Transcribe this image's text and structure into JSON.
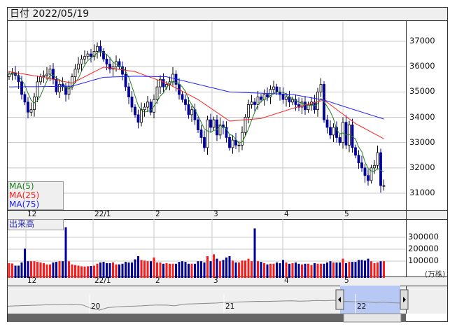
{
  "header": {
    "date_label": "日付",
    "date_value": "2022/05/19"
  },
  "legend": {
    "ma5": "MA(5)",
    "ma25": "MA(25)",
    "ma75": "MA(75)"
  },
  "volume_panel": {
    "label": "出来高",
    "unit": "(万株)"
  },
  "colors": {
    "up_fill": "#ffffff",
    "down_fill": "#000099",
    "ma5": "#208020",
    "ma25": "#ff2020",
    "ma75": "#2020ff",
    "vol_up": "#ff1a1a",
    "vol_down": "#000099",
    "navigator_sel": "#b8c8f5",
    "grid": "#c8c8c8",
    "panel_bg": "#efefef"
  },
  "chart_data": [
    {
      "type": "candlestick",
      "title": "",
      "ylim": [
        30400,
        37800
      ],
      "y_ticks": [
        "37000",
        "36000",
        "35000",
        "34000",
        "33000",
        "32000",
        "31000"
      ],
      "x_ticks": [
        "12",
        "22/1",
        "2",
        "3",
        "4",
        "5"
      ],
      "grid": true,
      "legend_position": "bottom-left",
      "close": [
        35700,
        35750,
        35650,
        35400,
        34900,
        34600,
        34200,
        34300,
        34800,
        35400,
        35600,
        35650,
        35700,
        35900,
        35500,
        35000,
        35300,
        35200,
        34900,
        35200,
        35600,
        35900,
        36100,
        36300,
        36400,
        36500,
        36400,
        36600,
        36800,
        36600,
        36300,
        36100,
        35900,
        36000,
        36200,
        36000,
        35700,
        35200,
        34800,
        34400,
        34100,
        33800,
        34300,
        34400,
        34600,
        34200,
        34700,
        35200,
        35500,
        35200,
        35300,
        35400,
        35700,
        35300,
        34900,
        34700,
        34500,
        34100,
        34300,
        33900,
        33500,
        33200,
        32800,
        33900,
        33600,
        33900,
        33300,
        33700,
        33600,
        33200,
        32800,
        33100,
        32900,
        32900,
        33400,
        34000,
        34500,
        34600,
        34500,
        34800,
        34700,
        34900,
        34800,
        35100,
        35200,
        35000,
        34900,
        34700,
        34800,
        34600,
        34700,
        34500,
        34400,
        34600,
        34300,
        34500,
        34600,
        34300,
        35000,
        35300,
        33900,
        33600,
        33300,
        33600,
        33200,
        33000,
        33800,
        32900,
        33700,
        32800,
        32500,
        32200,
        32000,
        31700,
        31500,
        32000,
        32100,
        32600,
        31300,
        31300
      ],
      "open": [
        35600,
        35700,
        35750,
        35650,
        35400,
        34900,
        34600,
        34200,
        34300,
        34800,
        35400,
        35600,
        35650,
        35700,
        35900,
        35500,
        35000,
        35300,
        35200,
        34900,
        35200,
        35600,
        35900,
        36100,
        36300,
        36400,
        36500,
        36400,
        36600,
        36800,
        36600,
        36300,
        36100,
        35900,
        36000,
        36200,
        36000,
        35700,
        35200,
        34800,
        34400,
        34100,
        33800,
        34300,
        34400,
        34600,
        34200,
        34700,
        35200,
        35500,
        35200,
        35300,
        35400,
        35700,
        35300,
        34900,
        34700,
        34500,
        34100,
        34300,
        33900,
        33500,
        33200,
        32800,
        33900,
        33600,
        33900,
        33300,
        33700,
        33600,
        33200,
        32800,
        33100,
        32900,
        32900,
        33400,
        34000,
        34500,
        34600,
        34500,
        34800,
        34700,
        34900,
        34800,
        35100,
        35200,
        35000,
        34900,
        34700,
        34800,
        34600,
        34700,
        34500,
        34400,
        34600,
        34300,
        34500,
        34600,
        34300,
        35000,
        35300,
        33900,
        33600,
        33300,
        33600,
        33200,
        33000,
        33800,
        32900,
        33700,
        32800,
        32500,
        32200,
        32000,
        31700,
        31500,
        32000,
        32100,
        32600,
        31300
      ],
      "ma25_samples": [
        35800,
        35600,
        35350,
        35980,
        35800,
        35350,
        34700,
        33850,
        33950,
        34350,
        34680,
        33750,
        33150
      ],
      "ma75_samples": [
        35200,
        35210,
        35230,
        35580,
        35620,
        35600,
        35300,
        35000,
        34950,
        34900,
        34680,
        34280,
        33930
      ],
      "series": [
        {
          "name": "MA(5)"
        },
        {
          "name": "MA(25)"
        },
        {
          "name": "MA(75)"
        }
      ]
    },
    {
      "type": "bar",
      "title": "出来高",
      "ylabel": "(万株)",
      "ylim": [
        0,
        400000
      ],
      "y_ticks": [
        "300000",
        "200000",
        "100000"
      ],
      "x_ticks": [
        "12",
        "22/1",
        "2",
        "3",
        "4",
        "5"
      ],
      "values": [
        95000,
        92000,
        75000,
        75000,
        100000,
        210000,
        110000,
        110000,
        110000,
        105000,
        100000,
        95000,
        85000,
        85000,
        100000,
        105000,
        110000,
        110000,
        380000,
        110000,
        85000,
        80000,
        75000,
        70000,
        68000,
        70000,
        72000,
        75000,
        90000,
        100000,
        105000,
        95000,
        95000,
        100000,
        85000,
        85000,
        90000,
        105000,
        100000,
        100000,
        125000,
        150000,
        120000,
        115000,
        110000,
        110000,
        140000,
        100000,
        100000,
        90000,
        95000,
        90000,
        90000,
        90000,
        105000,
        110000,
        105000,
        90000,
        90000,
        90000,
        110000,
        110000,
        100000,
        150000,
        110000,
        165000,
        130000,
        110000,
        120000,
        140000,
        150000,
        115000,
        100000,
        100000,
        115000,
        115000,
        130000,
        110000,
        370000,
        110000,
        105000,
        95000,
        85000,
        90000,
        90000,
        100000,
        95000,
        120000,
        100000,
        90000,
        95000,
        100000,
        90000,
        85000,
        90000,
        90000,
        80000,
        95000,
        90000,
        90000,
        90000,
        100000,
        110000,
        100000,
        100000,
        100000,
        130000,
        95000,
        105000,
        105000,
        105000,
        120000,
        120000,
        115000,
        130000,
        110000,
        95000,
        100000,
        110000,
        110000
      ]
    }
  ],
  "navigator": {
    "year_labels": [
      "20",
      "21",
      "22"
    ],
    "history": [
      26000,
      26500,
      27000,
      27500,
      28000,
      28500,
      28800,
      28900,
      29000,
      28000,
      22000,
      19000,
      23500,
      24500,
      25500,
      26000,
      26500,
      27500,
      28000,
      27800,
      26500,
      29500,
      30000,
      30500,
      31000,
      31500,
      32500,
      33000,
      33500,
      34000,
      34500,
      34300,
      34800,
      35000,
      35300,
      34800,
      35200,
      36000,
      35500,
      36300,
      34500,
      34000,
      33800,
      33500,
      32500,
      33200,
      32000,
      31300
    ]
  }
}
